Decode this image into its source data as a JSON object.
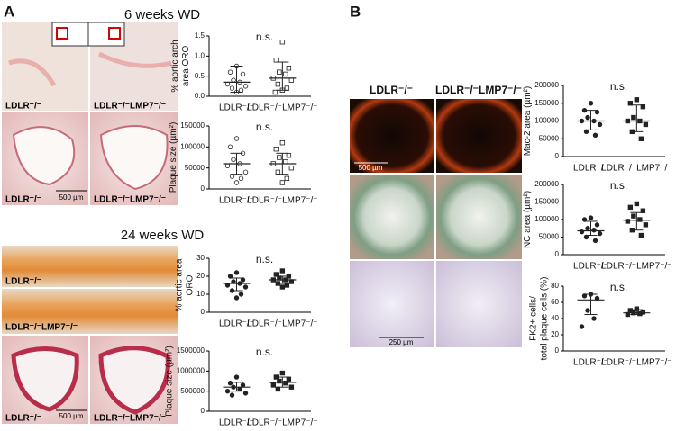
{
  "figure": {
    "A": {
      "label": "A",
      "sections": [
        {
          "title": "6 weeks WD",
          "image_labels": [
            "LDLR⁻/⁻",
            "LDLR⁻/⁻LMP7⁻/⁻",
            "LDLR⁻/⁻",
            "LDLR⁻/⁻LMP7⁻/⁻"
          ],
          "scale_bar": "500 µm"
        },
        {
          "title": "24 weeks WD",
          "image_labels": [
            "LDLR⁻/⁻",
            "LDLR⁻/⁻LMP7⁻/⁻",
            "LDLR⁻/⁻",
            "LDLR⁻/⁻LMP7⁻/⁻"
          ],
          "scale_bar": "500 µm"
        }
      ]
    },
    "B": {
      "label": "B",
      "column_headers": [
        "LDLR⁻/⁻",
        "LDLR⁻/⁻LMP7⁻/⁻"
      ],
      "scale_bars": [
        "500 µm",
        "250 µm"
      ]
    }
  },
  "chart_data": [
    {
      "type": "strip",
      "annotation": "n.s.",
      "ylabel": [
        "% aortic arch",
        "area ORO"
      ],
      "categories": [
        "LDLR⁻/⁻",
        "LDLR⁻/⁻LMP7⁻/⁻"
      ],
      "markers": [
        "circle-open",
        "square-open"
      ],
      "color": "#222222",
      "points": [
        [
          0.75,
          0.6,
          0.55,
          0.4,
          0.35,
          0.3,
          0.25,
          0.2,
          0.15,
          0.1
        ],
        [
          1.35,
          0.9,
          0.7,
          0.6,
          0.55,
          0.45,
          0.4,
          0.3,
          0.2,
          0.15,
          0.1
        ]
      ],
      "means": [
        0.35,
        0.45
      ],
      "ranges": [
        [
          0.1,
          0.75
        ],
        [
          0.15,
          0.85
        ]
      ],
      "ylim": [
        0,
        1.5
      ],
      "yticks": [
        {
          "value": 0,
          "label": "0.0"
        },
        {
          "value": 0.5,
          "label": "0.5"
        },
        {
          "value": 1,
          "label": "1.0"
        },
        {
          "value": 1.5,
          "label": "1.5"
        }
      ]
    },
    {
      "type": "strip",
      "annotation": "n.s.",
      "ylabel": [
        "Plaque size (µm²)"
      ],
      "categories": [
        "LDLR⁻/⁻",
        "LDLR⁻/⁻LMP7⁻/⁻"
      ],
      "markers": [
        "circle-open",
        "square-open"
      ],
      "color": "#222222",
      "points": [
        [
          120000,
          100000,
          85000,
          70000,
          60000,
          55000,
          40000,
          30000,
          25000,
          15000
        ],
        [
          110000,
          95000,
          80000,
          75000,
          65000,
          60000,
          50000,
          40000,
          25000,
          15000
        ]
      ],
      "means": [
        60000,
        60000
      ],
      "ranges": [
        [
          35000,
          85000
        ],
        [
          35000,
          85000
        ]
      ],
      "ylim": [
        0,
        150000
      ],
      "yticks": [
        0,
        50000,
        100000,
        150000
      ]
    },
    {
      "type": "strip",
      "annotation": "n.s.",
      "ylabel": [
        "% aortic area",
        "ORO"
      ],
      "categories": [
        "LDLR⁻/⁻",
        "LDLR⁻/⁻LMP7⁻/⁻"
      ],
      "markers": [
        "circle",
        "square"
      ],
      "color": "#222222",
      "points": [
        [
          22,
          20,
          18,
          17,
          16,
          15,
          14,
          12,
          10,
          8
        ],
        [
          23,
          21,
          20,
          19,
          18,
          18,
          17,
          16,
          15,
          14
        ]
      ],
      "means": [
        16,
        18
      ],
      "ranges": [
        [
          12,
          19
        ],
        [
          16,
          20
        ]
      ],
      "ylim": [
        0,
        30
      ],
      "yticks": [
        0,
        10,
        20,
        30
      ]
    },
    {
      "type": "strip",
      "annotation": "n.s.",
      "ylabel": [
        "Plaque size (µm²)"
      ],
      "categories": [
        "LDLR⁻/⁻",
        "LDLR⁻/⁻LMP7⁻/⁻"
      ],
      "markers": [
        "circle",
        "square"
      ],
      "color": "#222222",
      "points": [
        [
          850000,
          700000,
          650000,
          600000,
          550000,
          500000,
          450000,
          400000
        ],
        [
          950000,
          850000,
          800000,
          750000,
          700000,
          650000,
          600000,
          550000
        ]
      ],
      "means": [
        600000,
        720000
      ],
      "ranges": [
        [
          500000,
          720000
        ],
        [
          600000,
          850000
        ]
      ],
      "ylim": [
        0,
        1500000
      ],
      "yticks": [
        0,
        500000,
        1000000,
        1500000
      ]
    },
    {
      "type": "strip",
      "annotation": "n.s.",
      "ylabel": [
        "Mac-2 area (µm²)"
      ],
      "categories": [
        "LDLR⁻/⁻",
        "LDLR⁻/⁻LMP7⁻/⁻"
      ],
      "markers": [
        "circle",
        "square"
      ],
      "color": "#222222",
      "points": [
        [
          150000,
          130000,
          125000,
          110000,
          100000,
          100000,
          90000,
          70000,
          60000
        ],
        [
          160000,
          150000,
          140000,
          110000,
          100000,
          100000,
          90000,
          70000,
          50000
        ]
      ],
      "means": [
        100000,
        100000
      ],
      "ranges": [
        [
          75000,
          130000
        ],
        [
          70000,
          145000
        ]
      ],
      "ylim": [
        0,
        200000
      ],
      "yticks": [
        0,
        50000,
        100000,
        150000,
        200000
      ]
    },
    {
      "type": "strip",
      "annotation": "n.s.",
      "ylabel": [
        "NC area (µm²)"
      ],
      "categories": [
        "LDLR⁻/⁻",
        "LDLR⁻/⁻LMP7⁻/⁻"
      ],
      "markers": [
        "circle",
        "square"
      ],
      "color": "#222222",
      "points": [
        [
          105000,
          100000,
          85000,
          75000,
          70000,
          65000,
          60000,
          50000,
          40000
        ],
        [
          145000,
          135000,
          125000,
          110000,
          100000,
          95000,
          85000,
          70000,
          55000
        ]
      ],
      "means": [
        68000,
        98000
      ],
      "ranges": [
        [
          55000,
          95000
        ],
        [
          70000,
          120000
        ]
      ],
      "ylim": [
        0,
        200000
      ],
      "yticks": [
        0,
        50000,
        100000,
        150000,
        200000
      ]
    },
    {
      "type": "strip",
      "annotation": "n.s.",
      "ylabel": [
        "FK2+ cells/",
        "total plaque cells (%)"
      ],
      "categories": [
        "LDLR⁻/⁻",
        "LDLR⁻/⁻LMP7⁻/⁻"
      ],
      "markers": [
        "circle",
        "square"
      ],
      "color": "#222222",
      "points": [
        [
          70,
          68,
          65,
          50,
          40,
          30
        ],
        [
          52,
          50,
          48,
          47,
          46,
          45
        ]
      ],
      "means": [
        63,
        47
      ],
      "ranges": [
        [
          45,
          70
        ],
        [
          45,
          51
        ]
      ],
      "ylim": [
        0,
        80
      ],
      "yticks": [
        0,
        20,
        40,
        60,
        80
      ]
    }
  ]
}
